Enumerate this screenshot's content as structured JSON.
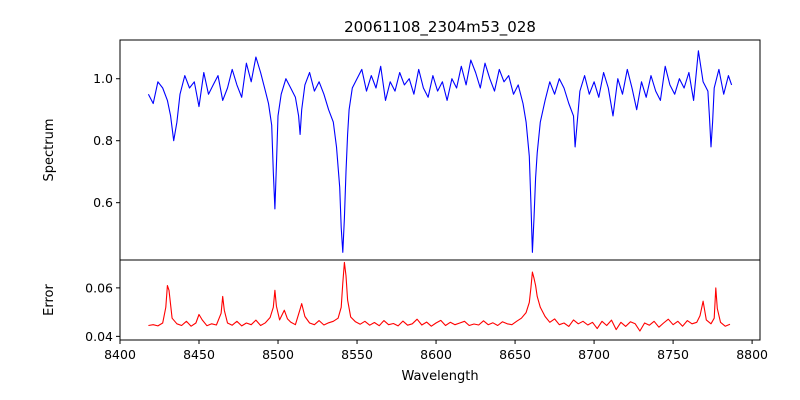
{
  "chart_data": [
    {
      "type": "line",
      "title": "20061108_2304m53_028",
      "xlabel": "",
      "ylabel": "Spectrum",
      "xlim": [
        8400,
        8805
      ],
      "ylim": [
        0.415,
        1.125
      ],
      "xticks": [],
      "yticks": [
        0.6,
        0.8,
        1.0
      ],
      "ytick_labels": [
        "0.6",
        "0.8",
        "1.0"
      ],
      "grid": false,
      "series": [
        {
          "color": "#0000ff",
          "x": [
            8418,
            8421,
            8424,
            8427,
            8430,
            8432,
            8434,
            8436,
            8438,
            8441,
            8444,
            8447,
            8450,
            8453,
            8456,
            8459,
            8462,
            8465,
            8468,
            8471,
            8474,
            8477,
            8480,
            8483,
            8486,
            8489,
            8492,
            8494,
            8496,
            8497,
            8498,
            8499,
            8500,
            8502,
            8505,
            8508,
            8511,
            8513,
            8514,
            8515,
            8517,
            8520,
            8523,
            8526,
            8529,
            8532,
            8535,
            8537,
            8539,
            8540,
            8541,
            8542,
            8543,
            8544,
            8545,
            8547,
            8550,
            8553,
            8556,
            8559,
            8562,
            8565,
            8568,
            8571,
            8574,
            8577,
            8580,
            8583,
            8586,
            8589,
            8592,
            8595,
            8598,
            8601,
            8604,
            8607,
            8610,
            8613,
            8616,
            8619,
            8622,
            8625,
            8628,
            8631,
            8634,
            8637,
            8640,
            8643,
            8646,
            8649,
            8652,
            8655,
            8657,
            8659,
            8660,
            8661,
            8662,
            8663,
            8664,
            8666,
            8669,
            8672,
            8675,
            8678,
            8681,
            8684,
            8687,
            8688,
            8689,
            8691,
            8694,
            8697,
            8700,
            8703,
            8706,
            8709,
            8712,
            8715,
            8718,
            8721,
            8724,
            8727,
            8730,
            8733,
            8736,
            8739,
            8742,
            8745,
            8748,
            8751,
            8754,
            8757,
            8760,
            8763,
            8766,
            8769,
            8772,
            8773,
            8774,
            8775,
            8776,
            8779,
            8782,
            8785,
            8787
          ],
          "y": [
            0.95,
            0.92,
            0.99,
            0.97,
            0.93,
            0.88,
            0.8,
            0.86,
            0.95,
            1.01,
            0.97,
            0.99,
            0.91,
            1.02,
            0.95,
            0.98,
            1.01,
            0.93,
            0.97,
            1.03,
            0.98,
            0.94,
            1.05,
            0.99,
            1.07,
            1.02,
            0.96,
            0.92,
            0.85,
            0.7,
            0.58,
            0.72,
            0.88,
            0.95,
            1.0,
            0.97,
            0.94,
            0.88,
            0.82,
            0.9,
            0.98,
            1.02,
            0.96,
            0.99,
            0.95,
            0.9,
            0.86,
            0.78,
            0.65,
            0.52,
            0.44,
            0.55,
            0.7,
            0.82,
            0.9,
            0.97,
            1.0,
            1.03,
            0.96,
            1.01,
            0.97,
            1.04,
            0.93,
            0.99,
            0.96,
            1.02,
            0.98,
            1.0,
            0.95,
            1.03,
            0.97,
            0.94,
            1.01,
            0.96,
            0.99,
            0.93,
            1.0,
            0.97,
            1.04,
            0.98,
            1.06,
            1.02,
            0.97,
            1.05,
            1.0,
            0.96,
            1.03,
            0.99,
            1.01,
            0.95,
            0.98,
            0.92,
            0.86,
            0.75,
            0.6,
            0.44,
            0.55,
            0.68,
            0.76,
            0.86,
            0.93,
            0.99,
            0.95,
            1.0,
            0.97,
            0.92,
            0.88,
            0.78,
            0.84,
            0.96,
            1.01,
            0.95,
            0.99,
            0.94,
            1.02,
            0.97,
            0.88,
            1.0,
            0.95,
            1.03,
            0.97,
            0.9,
            0.99,
            0.94,
            1.01,
            0.96,
            0.93,
            1.04,
            0.98,
            0.95,
            1.0,
            0.97,
            1.02,
            0.93,
            1.09,
            0.99,
            0.96,
            0.88,
            0.78,
            0.86,
            0.97,
            1.03,
            0.95,
            1.01,
            0.98
          ]
        }
      ]
    },
    {
      "type": "line",
      "title": "",
      "xlabel": "Wavelength",
      "ylabel": "Error",
      "xlim": [
        8400,
        8805
      ],
      "ylim": [
        0.0385,
        0.0715
      ],
      "xticks": [
        8400,
        8450,
        8500,
        8550,
        8600,
        8650,
        8700,
        8750,
        8800
      ],
      "xtick_labels": [
        "8400",
        "8450",
        "8500",
        "8550",
        "8600",
        "8650",
        "8700",
        "8750",
        "8800"
      ],
      "yticks": [
        0.04,
        0.06
      ],
      "ytick_labels": [
        "0.04",
        "0.06"
      ],
      "grid": false,
      "series": [
        {
          "color": "#ff0000",
          "x": [
            8418,
            8421,
            8424,
            8427,
            8429,
            8430,
            8431,
            8433,
            8436,
            8439,
            8442,
            8445,
            8448,
            8450,
            8452,
            8455,
            8458,
            8461,
            8464,
            8465,
            8466,
            8468,
            8471,
            8474,
            8477,
            8480,
            8483,
            8486,
            8489,
            8492,
            8495,
            8497,
            8498,
            8499,
            8501,
            8504,
            8506,
            8508,
            8511,
            8514,
            8515,
            8517,
            8520,
            8523,
            8526,
            8529,
            8532,
            8535,
            8538,
            8540,
            8541,
            8542,
            8543,
            8544,
            8546,
            8549,
            8552,
            8555,
            8558,
            8561,
            8564,
            8567,
            8570,
            8573,
            8576,
            8579,
            8582,
            8585,
            8588,
            8591,
            8594,
            8597,
            8600,
            8603,
            8606,
            8609,
            8612,
            8615,
            8618,
            8621,
            8624,
            8627,
            8630,
            8633,
            8636,
            8639,
            8642,
            8645,
            8648,
            8651,
            8654,
            8657,
            8659,
            8660,
            8661,
            8662,
            8663,
            8664,
            8666,
            8669,
            8672,
            8675,
            8678,
            8681,
            8684,
            8687,
            8690,
            8693,
            8696,
            8699,
            8702,
            8705,
            8708,
            8711,
            8714,
            8717,
            8720,
            8723,
            8726,
            8729,
            8732,
            8735,
            8738,
            8741,
            8744,
            8747,
            8750,
            8753,
            8756,
            8759,
            8762,
            8765,
            8767,
            8769,
            8771,
            8774,
            8776,
            8777,
            8778,
            8780,
            8783,
            8786
          ],
          "y": [
            0.0445,
            0.0448,
            0.0443,
            0.0455,
            0.052,
            0.061,
            0.059,
            0.0475,
            0.0452,
            0.0445,
            0.0462,
            0.0442,
            0.0455,
            0.049,
            0.0468,
            0.0444,
            0.0452,
            0.0447,
            0.0495,
            0.0565,
            0.0508,
            0.0455,
            0.0446,
            0.0462,
            0.0443,
            0.0455,
            0.0448,
            0.0467,
            0.0445,
            0.0456,
            0.0478,
            0.052,
            0.059,
            0.0525,
            0.0468,
            0.0508,
            0.0472,
            0.0459,
            0.0448,
            0.0512,
            0.0535,
            0.0482,
            0.0455,
            0.0448,
            0.0465,
            0.0447,
            0.0456,
            0.0462,
            0.0475,
            0.052,
            0.062,
            0.0705,
            0.065,
            0.055,
            0.048,
            0.046,
            0.045,
            0.0462,
            0.0446,
            0.0457,
            0.0444,
            0.0465,
            0.0448,
            0.0453,
            0.0443,
            0.0463,
            0.0446,
            0.0452,
            0.0471,
            0.0447,
            0.0459,
            0.0442,
            0.0455,
            0.0466,
            0.0445,
            0.0458,
            0.0448,
            0.0455,
            0.0462,
            0.0445,
            0.0451,
            0.0447,
            0.0464,
            0.0448,
            0.0456,
            0.0445,
            0.046,
            0.0452,
            0.0448,
            0.0462,
            0.0475,
            0.0498,
            0.054,
            0.06,
            0.0665,
            0.064,
            0.061,
            0.0565,
            0.052,
            0.0482,
            0.0458,
            0.0472,
            0.0448,
            0.0455,
            0.0441,
            0.0468,
            0.0452,
            0.0462,
            0.0447,
            0.0458,
            0.0432,
            0.0462,
            0.0445,
            0.0467,
            0.0428,
            0.0458,
            0.0441,
            0.046,
            0.0452,
            0.0422,
            0.0455,
            0.0446,
            0.0462,
            0.0438,
            0.0455,
            0.0471,
            0.0448,
            0.0462,
            0.0442,
            0.0465,
            0.0452,
            0.0458,
            0.0485,
            0.0545,
            0.0468,
            0.0452,
            0.0475,
            0.06,
            0.0515,
            0.0458,
            0.0442,
            0.045
          ]
        }
      ]
    }
  ]
}
